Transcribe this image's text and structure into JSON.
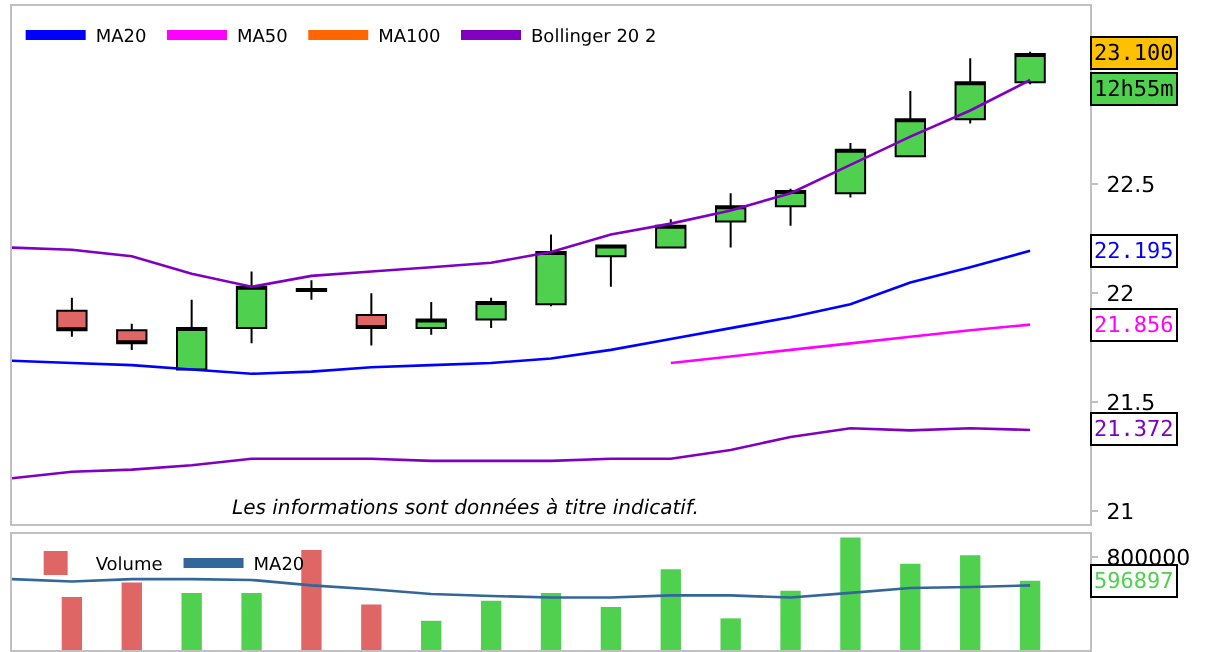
{
  "chart_data": [
    {
      "type": "candlestick",
      "categories": [
        null,
        null,
        null,
        null,
        null,
        null,
        null,
        null,
        null,
        null,
        null,
        null,
        null,
        null,
        null,
        null,
        null,
        null,
        null
      ],
      "ohlc": [
        null,
        [
          21.92,
          21.98,
          21.8,
          21.83
        ],
        [
          21.83,
          21.86,
          21.74,
          21.77
        ],
        [
          21.65,
          21.97,
          21.65,
          21.84
        ],
        [
          21.84,
          22.1,
          21.77,
          22.03
        ],
        [
          22.02,
          22.06,
          21.97,
          22.01
        ],
        [
          21.9,
          22.0,
          21.76,
          21.84
        ],
        [
          21.84,
          21.96,
          21.81,
          21.88
        ],
        [
          21.88,
          21.98,
          21.84,
          21.96
        ],
        [
          21.95,
          22.27,
          21.94,
          22.19
        ],
        [
          22.17,
          22.22,
          22.03,
          22.22
        ],
        [
          22.21,
          22.34,
          22.21,
          22.31
        ],
        [
          22.33,
          22.46,
          22.21,
          22.4
        ],
        [
          22.4,
          22.48,
          22.31,
          22.47
        ],
        [
          22.46,
          22.69,
          22.44,
          22.66
        ],
        [
          22.63,
          22.93,
          22.63,
          22.8
        ],
        [
          22.8,
          23.08,
          22.78,
          22.97
        ],
        [
          22.97,
          23.11,
          22.96,
          23.1
        ],
        null
      ],
      "colors": [
        null,
        "#e06666",
        "#e06666",
        "#4fd14f",
        "#4fd14f",
        "#000000",
        "#e06666",
        "#4fd14f",
        "#4fd14f",
        "#4fd14f",
        "#4fd14f",
        "#4fd14f",
        "#4fd14f",
        "#4fd14f",
        "#4fd14f",
        "#4fd14f",
        "#4fd14f",
        "#4fd14f",
        null
      ],
      "series": [
        {
          "type": "line",
          "name": "MA20",
          "color": "#0000ff",
          "values": [
            21.69,
            21.68,
            21.67,
            21.65,
            21.63,
            21.64,
            21.66,
            21.67,
            21.68,
            21.7,
            21.74,
            21.79,
            21.84,
            21.89,
            21.95,
            22.05,
            22.12,
            22.195,
            null
          ]
        },
        {
          "type": "line",
          "name": "MA50",
          "color": "#ff00ff",
          "values": [
            null,
            null,
            null,
            null,
            null,
            null,
            null,
            null,
            null,
            null,
            null,
            21.68,
            21.71,
            21.74,
            21.77,
            21.8,
            21.83,
            21.856,
            null
          ]
        },
        {
          "type": "line",
          "name": "MA100",
          "color": "#ff6600",
          "values": [
            null,
            null,
            null,
            null,
            null,
            null,
            null,
            null,
            null,
            null,
            null,
            null,
            null,
            null,
            null,
            null,
            null,
            null,
            null
          ]
        },
        {
          "type": "line",
          "name": "Bollinger 20 2",
          "color": "#8000c0",
          "values": [
            22.21,
            22.2,
            22.17,
            22.09,
            22.03,
            22.08,
            22.1,
            22.12,
            22.14,
            22.19,
            22.27,
            22.32,
            22.38,
            22.46,
            22.59,
            22.72,
            22.84,
            22.98,
            null
          ]
        },
        {
          "type": "line",
          "color": "#8000c0",
          "values": [
            21.15,
            21.18,
            21.19,
            21.21,
            21.24,
            21.24,
            21.24,
            21.23,
            21.23,
            21.23,
            21.24,
            21.24,
            21.28,
            21.34,
            21.38,
            21.37,
            21.38,
            21.372,
            null
          ]
        }
      ],
      "ylim": [
        20.94,
        23.32
      ],
      "yticks": [
        21,
        21.5,
        22,
        22.5
      ],
      "tick_labels": "y",
      "legend": "top left",
      "annotations": [
        "Les informations sont données à titre indicatif.",
        {
          "text": "23.100",
          "y": 23.1
        },
        "12h55m",
        {
          "text": "22.195",
          "y": 22.195
        },
        {
          "text": "21.856",
          "y": 21.856
        },
        {
          "text": "21.372",
          "y": 21.372
        }
      ]
    },
    {
      "type": "bar",
      "categories": [
        null,
        null,
        null,
        null,
        null,
        null,
        null,
        null,
        null,
        null,
        null,
        null,
        null,
        null,
        null,
        null,
        null,
        null,
        null
      ],
      "series": [
        {
          "type": "bar",
          "name": "Volume",
          "colors": [
            null,
            "#e06666",
            "#e06666",
            "#4fd14f",
            "#4fd14f",
            "#e06666",
            "#e06666",
            "#4fd14f",
            "#4fd14f",
            "#4fd14f",
            "#4fd14f",
            "#4fd14f",
            "#4fd14f",
            "#4fd14f",
            "#4fd14f",
            "#4fd14f",
            "#4fd14f",
            "#4fd14f",
            null
          ],
          "values": [
            null,
            457000,
            583000,
            492000,
            492000,
            862000,
            392000,
            252000,
            424000,
            492000,
            371000,
            697000,
            273000,
            511000,
            969000,
            743000,
            816000,
            596897,
            null
          ]
        },
        {
          "type": "line",
          "name": "MA20",
          "color": "#336699",
          "values": [
            611000,
            590000,
            611000,
            611000,
            604000,
            557000,
            524000,
            483000,
            466000,
            452000,
            452000,
            471000,
            471000,
            452000,
            492000,
            535000,
            543000,
            557000,
            null
          ]
        }
      ],
      "ylim": [
        0,
        1000000
      ],
      "yticks": [
        800000
      ],
      "tick_labels": "y",
      "legend": "top left",
      "annotations": [
        {
          "text": "596897",
          "y": 596897
        }
      ]
    }
  ]
}
